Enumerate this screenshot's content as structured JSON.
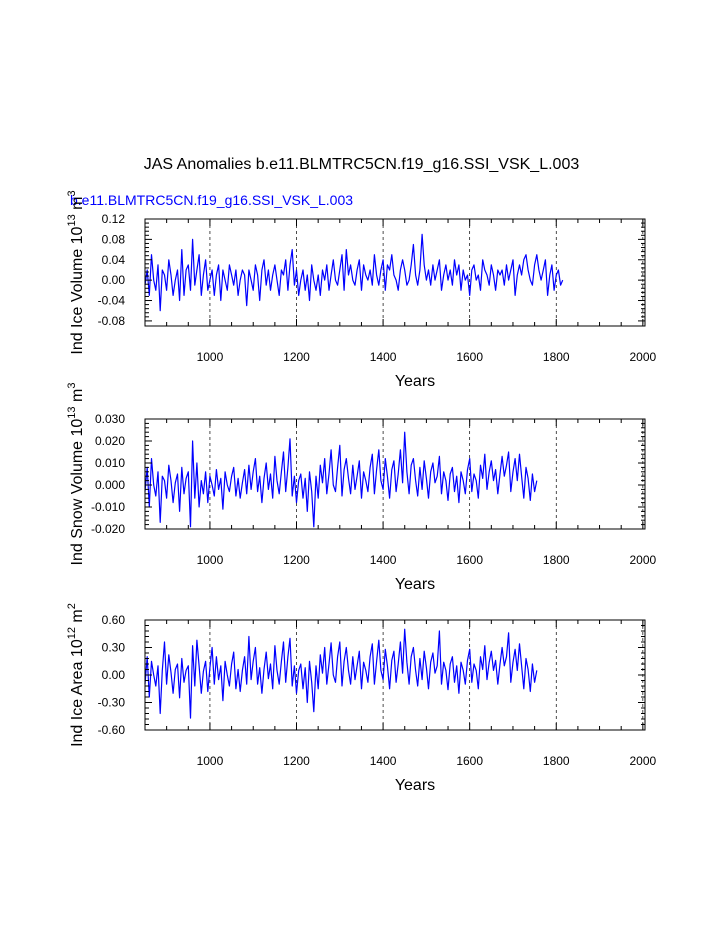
{
  "title": "JAS Anomalies b.e11.BLMTRC5CN.f19_g16.SSI_VSK_L.003",
  "case_label": "b.e11.BLMTRC5CN.f19_g16.SSI_VSK_L.003",
  "colors": {
    "series": "#0000ff",
    "axis": "#000000",
    "grid": "#000000",
    "background": "#ffffff"
  },
  "chart_data": [
    {
      "type": "line",
      "name": "ice-volume",
      "xlabel": "Years",
      "ylabel": "Ind Ice Volume 10",
      "ylabel_sup": "13",
      "ylabel_unit": " m",
      "ylabel_unit_sup": "3",
      "xlim": [
        850,
        2005
      ],
      "ylim": [
        -0.09,
        0.12
      ],
      "xticks": [
        1000,
        1200,
        1400,
        1600,
        1800,
        2000
      ],
      "xtick_labels": [
        "1000",
        "1200",
        "1400",
        "1600",
        "1800",
        "2000"
      ],
      "yticks": [
        -0.08,
        -0.04,
        0.0,
        0.04,
        0.08,
        0.12
      ],
      "ytick_labels": [
        "-0.08",
        "-0.04",
        "0.00",
        "0.04",
        "0.08",
        "0.12"
      ],
      "grid_x": [
        1000,
        1200,
        1400,
        1600,
        1800,
        2000
      ],
      "series": [
        {
          "name": "Ind Ice Volume",
          "x_start": 850,
          "x_step": 5,
          "values": [
            -0.01,
            0.02,
            -0.03,
            0.05,
            0.0,
            -0.02,
            0.03,
            -0.06,
            0.02,
            0.01,
            -0.02,
            0.04,
            0.01,
            -0.03,
            0.0,
            0.02,
            -0.04,
            0.06,
            -0.03,
            0.02,
            0.03,
            -0.02,
            0.08,
            -0.01,
            0.02,
            0.05,
            -0.03,
            0.01,
            0.04,
            -0.02,
            0.0,
            0.02,
            -0.03,
            0.01,
            0.03,
            -0.04,
            0.02,
            0.0,
            -0.02,
            0.03,
            0.01,
            -0.01,
            0.02,
            -0.03,
            0.0,
            0.02,
            0.01,
            -0.05,
            0.02,
            0.0,
            -0.02,
            0.03,
            0.01,
            -0.04,
            0.02,
            0.04,
            -0.01,
            0.02,
            -0.02,
            0.01,
            0.03,
            0.0,
            -0.03,
            0.02,
            0.01,
            0.04,
            -0.02,
            0.03,
            0.06,
            -0.01,
            0.02,
            -0.03,
            0.0,
            0.02,
            -0.02,
            0.01,
            -0.04,
            0.03,
            0.0,
            -0.02,
            0.01,
            -0.03,
            0.02,
            0.0,
            0.03,
            -0.02,
            0.01,
            0.04,
            0.0,
            -0.01,
            0.02,
            0.05,
            -0.02,
            0.06,
            0.01,
            0.03,
            0.0,
            -0.01,
            0.02,
            0.04,
            -0.02,
            0.03,
            0.01,
            0.0,
            0.02,
            -0.01,
            0.05,
            0.01,
            -0.01,
            0.02,
            0.04,
            -0.02,
            0.03,
            0.02,
            0.05,
            0.01,
            0.0,
            -0.02,
            0.02,
            0.04,
            0.02,
            -0.01,
            0.0,
            0.03,
            0.07,
            0.01,
            -0.01,
            0.02,
            0.09,
            0.03,
            0.0,
            0.02,
            -0.01,
            0.03,
            0.0,
            0.02,
            0.04,
            -0.02,
            0.01,
            0.03,
            0.0,
            0.02,
            -0.01,
            0.04,
            0.01,
            0.03,
            -0.02,
            0.02,
            0.0,
            0.01,
            -0.03,
            0.02,
            0.03,
            0.0,
            0.01,
            -0.02,
            0.04,
            0.02,
            0.01,
            -0.01,
            0.03,
            0.01,
            -0.02,
            0.02,
            0.01,
            0.02,
            -0.01,
            0.03,
            0.0,
            0.02,
            0.04,
            -0.03,
            0.01,
            0.03,
            0.01,
            0.04,
            0.05,
            0.02,
            0.0,
            -0.01,
            0.03,
            0.05,
            0.02,
            0.0,
            0.02,
            0.04,
            -0.03,
            0.01,
            0.03,
            -0.02,
            0.01,
            0.02,
            -0.01,
            0.0
          ]
        }
      ]
    },
    {
      "type": "line",
      "name": "snow-volume",
      "xlabel": "Years",
      "ylabel": "Ind Snow Volume 10",
      "ylabel_sup": "13",
      "ylabel_unit": " m",
      "ylabel_unit_sup": "3",
      "xlim": [
        850,
        2005
      ],
      "ylim": [
        -0.02,
        0.03
      ],
      "xticks": [
        1000,
        1200,
        1400,
        1600,
        1800,
        2000
      ],
      "xtick_labels": [
        "1000",
        "1200",
        "1400",
        "1600",
        "1800",
        "2000"
      ],
      "yticks": [
        -0.02,
        -0.01,
        0.0,
        0.01,
        0.02,
        0.03
      ],
      "ytick_labels": [
        "-0.020",
        "-0.010",
        "0.000",
        "0.010",
        "0.020",
        "0.030"
      ],
      "grid_x": [
        1000,
        1200,
        1400,
        1600,
        1800,
        2000
      ],
      "series": [
        {
          "name": "Ind Snow Volume",
          "x_start": 850,
          "x_step": 5,
          "values": [
            -0.003,
            0.008,
            -0.01,
            0.012,
            0.0,
            -0.005,
            0.006,
            -0.017,
            0.004,
            0.002,
            -0.006,
            0.009,
            0.002,
            -0.008,
            0.001,
            0.005,
            -0.012,
            0.008,
            -0.004,
            0.003,
            0.006,
            -0.019,
            0.02,
            -0.006,
            0.01,
            -0.01,
            0.002,
            -0.004,
            0.006,
            -0.008,
            0.004,
            0.0,
            -0.005,
            0.007,
            -0.002,
            0.003,
            -0.011,
            0.006,
            0.0,
            -0.003,
            0.004,
            0.008,
            -0.005,
            0.003,
            -0.006,
            0.001,
            0.007,
            -0.004,
            0.009,
            -0.002,
            0.006,
            0.012,
            -0.003,
            0.004,
            -0.008,
            0.003,
            0.01,
            -0.002,
            0.005,
            -0.006,
            0.013,
            0.002,
            -0.004,
            0.006,
            0.015,
            -0.003,
            0.008,
            0.021,
            -0.005,
            0.004,
            -0.008,
            0.002,
            0.005,
            -0.006,
            0.003,
            -0.012,
            0.006,
            -0.003,
            -0.019,
            0.004,
            -0.006,
            0.009,
            0.001,
            0.012,
            -0.004,
            0.005,
            0.016,
            0.0,
            -0.003,
            0.008,
            0.018,
            -0.005,
            0.007,
            0.012,
            0.003,
            -0.004,
            0.009,
            -0.002,
            0.004,
            0.011,
            -0.006,
            0.006,
            0.002,
            -0.003,
            0.008,
            0.014,
            -0.004,
            0.007,
            0.016,
            0.002,
            -0.002,
            0.012,
            0.004,
            -0.006,
            0.007,
            0.011,
            -0.003,
            0.005,
            0.016,
            0.001,
            0.024,
            0.006,
            -0.004,
            0.009,
            0.012,
            0.002,
            -0.005,
            0.008,
            -0.002,
            0.011,
            0.003,
            -0.006,
            0.006,
            0.01,
            0.001,
            0.004,
            0.013,
            -0.004,
            0.006,
            0.002,
            -0.007,
            0.005,
            0.008,
            -0.003,
            0.004,
            -0.008,
            0.006,
            0.002,
            -0.004,
            0.007,
            0.012,
            -0.003,
            0.005,
            0.002,
            -0.006,
            0.009,
            0.003,
            0.014,
            -0.002,
            0.006,
            0.011,
            0.002,
            0.007,
            -0.004,
            0.005,
            0.013,
            0.004,
            0.009,
            0.015,
            -0.003,
            0.006,
            0.012,
            0.002,
            0.014,
            0.004,
            -0.006,
            0.008,
            0.003,
            -0.007,
            0.005,
            -0.003,
            0.002
          ]
        }
      ]
    },
    {
      "type": "line",
      "name": "ice-area",
      "xlabel": "Years",
      "ylabel": "Ind Ice Area 10",
      "ylabel_sup": "12",
      "ylabel_unit": " m",
      "ylabel_unit_sup": "2",
      "xlim": [
        850,
        2005
      ],
      "ylim": [
        -0.6,
        0.6
      ],
      "xticks": [
        1000,
        1200,
        1400,
        1600,
        1800,
        2000
      ],
      "xtick_labels": [
        "1000",
        "1200",
        "1400",
        "1600",
        "1800",
        "2000"
      ],
      "yticks": [
        -0.6,
        -0.3,
        0.0,
        0.3,
        0.6
      ],
      "ytick_labels": [
        "-0.60",
        "-0.30",
        "0.00",
        "0.30",
        "0.60"
      ],
      "grid_x": [
        1000,
        1200,
        1400,
        1600,
        1800,
        2000
      ],
      "series": [
        {
          "name": "Ind Ice Area",
          "x_start": 850,
          "x_step": 5,
          "values": [
            -0.1,
            0.2,
            -0.24,
            0.15,
            0.0,
            -0.12,
            0.1,
            -0.42,
            0.05,
            0.36,
            -0.1,
            0.22,
            0.03,
            -0.2,
            0.06,
            0.12,
            -0.25,
            0.18,
            -0.08,
            0.05,
            0.1,
            -0.47,
            0.32,
            -0.12,
            0.38,
            0.1,
            -0.2,
            0.04,
            0.15,
            -0.18,
            0.08,
            0.3,
            -0.1,
            0.2,
            -0.05,
            0.1,
            -0.28,
            0.15,
            0.0,
            -0.12,
            0.12,
            0.25,
            -0.15,
            0.06,
            -0.18,
            0.05,
            0.2,
            -0.1,
            0.42,
            -0.05,
            0.15,
            0.3,
            -0.1,
            0.08,
            -0.2,
            0.06,
            0.25,
            -0.04,
            0.12,
            -0.15,
            0.32,
            0.05,
            -0.1,
            0.15,
            0.36,
            -0.08,
            0.2,
            0.4,
            -0.12,
            0.1,
            -0.2,
            0.05,
            0.12,
            -0.15,
            0.08,
            -0.3,
            0.15,
            -0.08,
            -0.4,
            0.1,
            -0.15,
            0.22,
            0.02,
            0.3,
            -0.1,
            0.12,
            0.35,
            0.0,
            -0.08,
            0.2,
            0.36,
            -0.12,
            0.15,
            0.3,
            0.05,
            -0.1,
            0.2,
            -0.05,
            0.1,
            0.26,
            -0.15,
            0.14,
            0.05,
            -0.08,
            0.2,
            0.34,
            -0.1,
            0.15,
            0.38,
            0.05,
            -0.05,
            0.28,
            0.1,
            -0.15,
            0.16,
            0.26,
            -0.08,
            0.12,
            0.36,
            0.02,
            0.5,
            0.14,
            -0.1,
            0.2,
            0.3,
            0.05,
            -0.12,
            0.18,
            -0.05,
            0.26,
            0.08,
            -0.15,
            0.14,
            0.24,
            0.02,
            0.1,
            0.48,
            -0.1,
            0.14,
            0.05,
            -0.16,
            0.12,
            0.2,
            -0.08,
            0.1,
            -0.2,
            0.14,
            0.05,
            -0.1,
            0.16,
            0.28,
            -0.08,
            0.12,
            0.05,
            -0.15,
            0.2,
            0.06,
            0.32,
            -0.05,
            0.14,
            0.26,
            0.05,
            0.16,
            -0.1,
            0.12,
            0.3,
            0.1,
            0.2,
            0.46,
            -0.08,
            0.14,
            0.28,
            0.05,
            0.34,
            0.1,
            -0.15,
            0.18,
            0.06,
            -0.18,
            0.12,
            -0.08,
            0.05
          ]
        }
      ]
    }
  ]
}
